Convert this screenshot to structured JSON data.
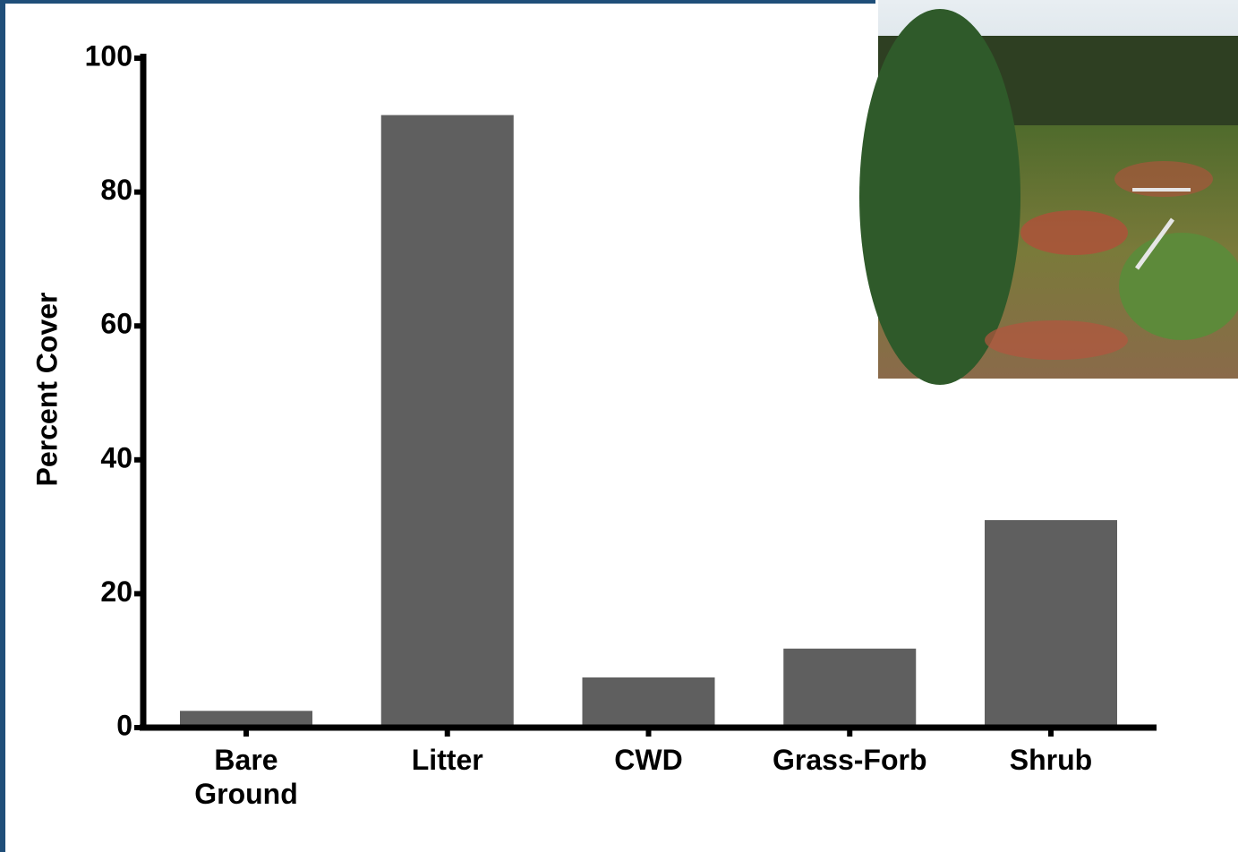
{
  "chart_data": {
    "type": "bar",
    "y_label": "Percent Cover",
    "categories": [
      "Bare\nGround",
      "Litter",
      "CWD",
      "Grass-Forb",
      "Shrub"
    ],
    "values": [
      2.5,
      91.5,
      7.5,
      11.8,
      31
    ],
    "color": "#5f5f5f",
    "ylim": [
      0,
      100
    ],
    "yticks": [
      0,
      20,
      40,
      60,
      80,
      100
    ]
  }
}
